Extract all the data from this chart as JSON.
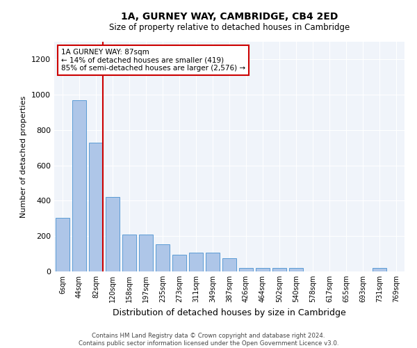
{
  "title": "1A, GURNEY WAY, CAMBRIDGE, CB4 2ED",
  "subtitle": "Size of property relative to detached houses in Cambridge",
  "xlabel": "Distribution of detached houses by size in Cambridge",
  "ylabel": "Number of detached properties",
  "bar_color": "#aec6e8",
  "bar_edge_color": "#5b9bd5",
  "background_color": "#ffffff",
  "plot_bg_color": "#f0f4fa",
  "grid_color": "#ffffff",
  "annotation_box_color": "#cc0000",
  "marker_line_color": "#cc0000",
  "annotation_text": "1A GURNEY WAY: 87sqm\n← 14% of detached houses are smaller (419)\n85% of semi-detached houses are larger (2,576) →",
  "footer_line1": "Contains HM Land Registry data © Crown copyright and database right 2024.",
  "footer_line2": "Contains public sector information licensed under the Open Government Licence v3.0.",
  "categories": [
    "6sqm",
    "44sqm",
    "82sqm",
    "120sqm",
    "158sqm",
    "197sqm",
    "235sqm",
    "273sqm",
    "311sqm",
    "349sqm",
    "387sqm",
    "426sqm",
    "464sqm",
    "502sqm",
    "540sqm",
    "578sqm",
    "617sqm",
    "655sqm",
    "693sqm",
    "731sqm",
    "769sqm"
  ],
  "values": [
    305,
    970,
    730,
    420,
    210,
    210,
    155,
    95,
    105,
    105,
    75,
    20,
    20,
    20,
    20,
    0,
    0,
    0,
    0,
    20,
    0
  ],
  "ylim": [
    0,
    1300
  ],
  "yticks": [
    0,
    200,
    400,
    600,
    800,
    1000,
    1200
  ]
}
